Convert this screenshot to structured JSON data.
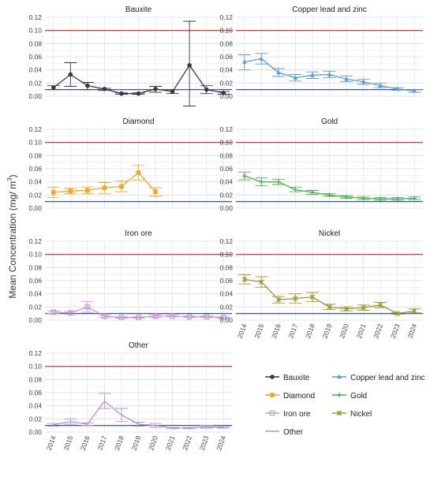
{
  "ylabel_parts": [
    "Mean Concentration (mg/ m",
    "3",
    ")"
  ],
  "refline_colors": {
    "upper": "#d62728",
    "lower": "#1f3fbf"
  },
  "y_ticks": [
    "0.00",
    "0.02",
    "0.04",
    "0.06",
    "0.08",
    "0.10",
    "0.12"
  ],
  "chart_data": [
    {
      "type": "line",
      "title": "Bauxite",
      "color": "#3a3a3a",
      "marker": "circle",
      "x": [
        2014,
        2015,
        2016,
        2017,
        2018,
        2019,
        2020,
        2021,
        2022,
        2023,
        2024
      ],
      "values": [
        0.013,
        0.033,
        0.016,
        0.011,
        0.004,
        0.004,
        0.011,
        0.007,
        0.047,
        0.01,
        0.005
      ],
      "error_low": [
        0.01,
        0.015,
        0.01,
        0.009,
        0.003,
        0.003,
        0.006,
        0.004,
        -0.018,
        0.004,
        0.003
      ],
      "error_high": [
        0.016,
        0.051,
        0.021,
        0.012,
        0.005,
        0.005,
        0.015,
        0.01,
        0.114,
        0.016,
        0.007
      ],
      "ylim": [
        0,
        0.12
      ],
      "reference_lines": [
        0.1,
        0.01
      ]
    },
    {
      "type": "line",
      "title": "Copper lead and zinc",
      "color": "#5b9bd5",
      "marker": "triangle",
      "x": [
        2014,
        2015,
        2016,
        2017,
        2018,
        2019,
        2020,
        2021,
        2022,
        2023,
        2024
      ],
      "values": [
        0.052,
        0.057,
        0.036,
        0.028,
        0.032,
        0.033,
        0.026,
        0.022,
        0.016,
        0.011,
        0.008
      ],
      "error_low": [
        0.04,
        0.049,
        0.03,
        0.023,
        0.027,
        0.028,
        0.022,
        0.018,
        0.013,
        0.009,
        0.006
      ],
      "error_high": [
        0.063,
        0.065,
        0.042,
        0.033,
        0.037,
        0.038,
        0.031,
        0.026,
        0.02,
        0.013,
        0.01
      ],
      "ylim": [
        0,
        0.12
      ],
      "reference_lines": [
        0.1,
        0.01
      ]
    },
    {
      "type": "line",
      "title": "Diamond",
      "color": "#f5a623",
      "marker": "square",
      "x": [
        2014,
        2015,
        2016,
        2017,
        2018,
        2019,
        2020
      ],
      "values": [
        0.024,
        0.026,
        0.027,
        0.031,
        0.033,
        0.054,
        0.025
      ],
      "error_low": [
        0.016,
        0.022,
        0.022,
        0.022,
        0.025,
        0.043,
        0.018
      ],
      "error_high": [
        0.032,
        0.03,
        0.032,
        0.039,
        0.041,
        0.065,
        0.031
      ],
      "ylim": [
        0,
        0.12
      ],
      "reference_lines": [
        0.1,
        0.01
      ]
    },
    {
      "type": "line",
      "title": "Gold",
      "color": "#4caf50",
      "marker": "plus",
      "x": [
        2014,
        2015,
        2016,
        2017,
        2018,
        2019,
        2020,
        2021,
        2022,
        2023,
        2024
      ],
      "values": [
        0.049,
        0.04,
        0.04,
        0.028,
        0.024,
        0.02,
        0.017,
        0.015,
        0.014,
        0.014,
        0.015
      ],
      "error_low": [
        0.043,
        0.034,
        0.036,
        0.025,
        0.021,
        0.018,
        0.015,
        0.013,
        0.012,
        0.012,
        0.013
      ],
      "error_high": [
        0.055,
        0.046,
        0.044,
        0.032,
        0.027,
        0.022,
        0.019,
        0.017,
        0.016,
        0.016,
        0.017
      ],
      "ylim": [
        0,
        0.12
      ],
      "reference_lines": [
        0.1,
        0.01
      ]
    },
    {
      "type": "line",
      "title": "Iron ore",
      "color": "#c39bd3",
      "marker": "square-open",
      "x": [
        2014,
        2015,
        2016,
        2017,
        2018,
        2019,
        2020,
        2021,
        2022,
        2023,
        2024
      ],
      "values": [
        0.012,
        0.011,
        0.02,
        0.006,
        0.004,
        0.004,
        0.006,
        0.006,
        0.005,
        0.005,
        0.004
      ],
      "error_low": [
        0.01,
        0.009,
        0.012,
        0.004,
        0.003,
        0.003,
        0.004,
        0.005,
        0.004,
        0.004,
        0.003
      ],
      "error_high": [
        0.014,
        0.013,
        0.028,
        0.008,
        0.005,
        0.005,
        0.008,
        0.008,
        0.006,
        0.006,
        0.005
      ],
      "ylim": [
        0,
        0.12
      ],
      "reference_lines": [
        0.1,
        0.01
      ]
    },
    {
      "type": "line",
      "title": "Nickel",
      "color": "#9e9a2f",
      "marker": "x-star",
      "x": [
        2014,
        2015,
        2016,
        2017,
        2018,
        2019,
        2020,
        2021,
        2022,
        2023,
        2024
      ],
      "values": [
        0.062,
        0.058,
        0.031,
        0.033,
        0.035,
        0.02,
        0.017,
        0.019,
        0.023,
        0.01,
        0.014
      ],
      "error_low": [
        0.055,
        0.05,
        0.026,
        0.026,
        0.028,
        0.016,
        0.014,
        0.015,
        0.019,
        0.009,
        0.011
      ],
      "error_high": [
        0.069,
        0.066,
        0.036,
        0.04,
        0.042,
        0.024,
        0.02,
        0.023,
        0.027,
        0.011,
        0.017
      ],
      "ylim": [
        0,
        0.12
      ],
      "reference_lines": [
        0.1,
        0.01
      ]
    },
    {
      "type": "line",
      "title": "Other",
      "color": "#b394c8",
      "marker": "none",
      "x": [
        2014,
        2015,
        2016,
        2017,
        2018,
        2019,
        2020,
        2021,
        2022,
        2023,
        2024
      ],
      "values": [
        0.011,
        0.016,
        0.012,
        0.047,
        0.026,
        0.012,
        0.01,
        0.006,
        0.006,
        0.008,
        0.007
      ],
      "error_low": [
        0.009,
        0.012,
        0.01,
        0.036,
        0.016,
        0.009,
        0.007,
        0.005,
        0.005,
        0.006,
        0.006
      ],
      "error_high": [
        0.013,
        0.02,
        0.014,
        0.059,
        0.036,
        0.015,
        0.013,
        0.007,
        0.007,
        0.01,
        0.008
      ],
      "ylim": [
        0,
        0.12
      ],
      "reference_lines": [
        0.1,
        0.01
      ]
    }
  ],
  "legend": [
    {
      "label": "Bauxite",
      "color": "#3a3a3a",
      "marker": "circle"
    },
    {
      "label": "Copper lead and zinc",
      "color": "#5b9bd5",
      "marker": "triangle"
    },
    {
      "label": "Diamond",
      "color": "#f5a623",
      "marker": "square"
    },
    {
      "label": "Gold",
      "color": "#4caf50",
      "marker": "plus"
    },
    {
      "label": "Iron ore",
      "color": "#c39bd3",
      "marker": "square-open"
    },
    {
      "label": "Nickel",
      "color": "#9e9a2f",
      "marker": "x-star"
    },
    {
      "label": "Other",
      "color": "#b394c8",
      "marker": "none"
    }
  ]
}
